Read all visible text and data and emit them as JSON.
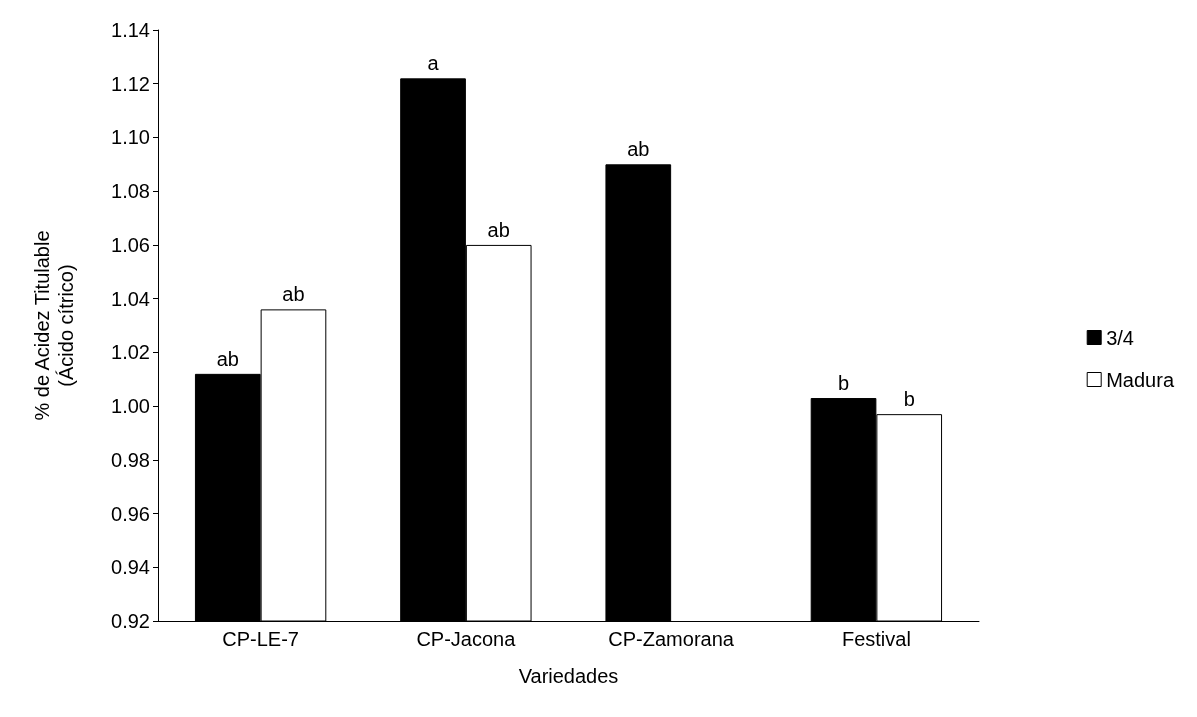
{
  "chart_data": {
    "type": "bar",
    "xlabel": "Variedades",
    "ylabel": "% de Acidez Titulable\n(Ácido cítrico)",
    "categories": [
      "CP-LE-7",
      "CP-Jacona",
      "CP-Zamorana",
      "Festival"
    ],
    "series": [
      {
        "name": "3/4",
        "color": "#000000",
        "values": [
          1.012,
          1.122,
          1.09,
          1.003
        ]
      },
      {
        "name": "Madura",
        "color": "#ffffff",
        "values": [
          1.036,
          1.06,
          null,
          0.997
        ]
      }
    ],
    "ylim": [
      0.92,
      1.14
    ],
    "yticks": [
      0.92,
      0.94,
      0.96,
      0.98,
      {
        "value": 1,
        "label": "1.00"
      },
      1.02,
      1.04,
      1.06,
      1.08,
      {
        "value": 1.1,
        "label": "1.10"
      },
      1.12,
      1.14
    ],
    "grid": false,
    "legend": "right",
    "annotations": [
      {
        "text": "ab",
        "x": "CP-LE-7",
        "y": 1.012
      },
      {
        "text": "ab",
        "x": "CP-LE-7",
        "y": 1.036
      },
      {
        "text": "a",
        "x": "CP-Jacona",
        "y": 1.122
      },
      {
        "text": "ab",
        "x": "CP-Jacona",
        "y": 1.06
      },
      {
        "text": "ab",
        "x": "CP-Zamorana",
        "y": 1.09
      },
      {
        "text": "b",
        "x": "Festival",
        "y": 1.003
      },
      {
        "text": "b",
        "x": "Festival",
        "y": 0.997
      }
    ]
  }
}
